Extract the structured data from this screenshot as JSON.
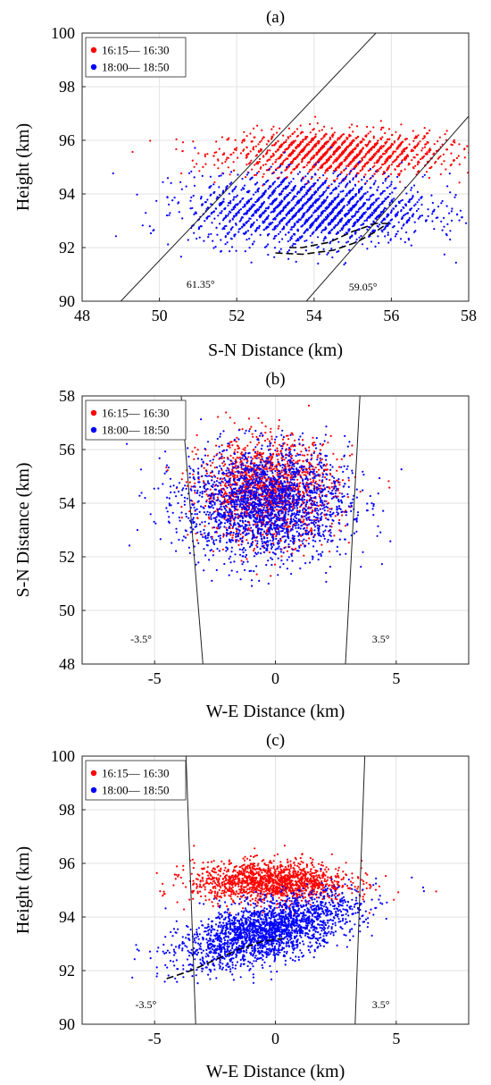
{
  "figure": {
    "panel_labels": [
      "(a)",
      "(b)",
      "(c)"
    ]
  },
  "chart_data": [
    {
      "type": "scatter",
      "panel_label": "(a)",
      "xlabel": "S-N Distance (km)",
      "ylabel": "Height (km)",
      "xlim": [
        48,
        58
      ],
      "ylim": [
        90,
        100
      ],
      "xticks": [
        48,
        50,
        52,
        54,
        56,
        58
      ],
      "yticks": [
        90,
        92,
        94,
        96,
        98,
        100
      ],
      "grid": true,
      "legend": "top-left",
      "series": [
        {
          "name": "16:15— 16:30",
          "color": "#ff0000",
          "cloud": {
            "cx": 54.6,
            "cy": 95.5,
            "sx": 1.4,
            "sy": 0.42,
            "n": 1500,
            "stripes": true
          }
        },
        {
          "name": "18:00— 18:50",
          "color": "#0000ff",
          "cloud": {
            "cx": 53.9,
            "cy": 93.4,
            "sx": 1.5,
            "sy": 0.65,
            "n": 2000,
            "stripes": true
          }
        }
      ],
      "lines": [
        {
          "points": [
            [
              49.0,
              90.0
            ],
            [
              55.6,
              100.0
            ]
          ],
          "label": "61.35°",
          "label_at": [
            50.7,
            90.5
          ]
        },
        {
          "points": [
            [
              53.8,
              90.0
            ],
            [
              58.0,
              96.9
            ]
          ],
          "label": "59.05°",
          "label_at": [
            54.9,
            90.4
          ]
        }
      ],
      "dashed_curve": [
        [
          53.0,
          91.8
        ],
        [
          53.7,
          91.75
        ],
        [
          54.5,
          91.9
        ],
        [
          55.1,
          92.2
        ],
        [
          55.6,
          92.6
        ],
        [
          55.9,
          92.9
        ],
        [
          55.6,
          92.9
        ],
        [
          55.0,
          92.6
        ],
        [
          54.4,
          92.2
        ],
        [
          53.7,
          92.0
        ],
        [
          53.3,
          92.0
        ]
      ]
    },
    {
      "type": "scatter",
      "panel_label": "(b)",
      "xlabel": "W-E Distance (km)",
      "ylabel": "S-N Distance (km)",
      "xlim": [
        -8,
        8
      ],
      "ylim": [
        48,
        58
      ],
      "xticks": [
        -5,
        0,
        5
      ],
      "yticks": [
        48,
        50,
        52,
        54,
        56,
        58
      ],
      "grid": true,
      "legend": "top-left",
      "series": [
        {
          "name": "16:15— 16:30",
          "color": "#ff0000",
          "cloud": {
            "cx": -0.3,
            "cy": 54.5,
            "sx": 1.4,
            "sy": 0.95,
            "n": 1500
          }
        },
        {
          "name": "18:00— 18:50",
          "color": "#0000ff",
          "cloud": {
            "cx": -0.4,
            "cy": 54.0,
            "sx": 1.7,
            "sy": 1.05,
            "n": 2200
          }
        }
      ],
      "lines": [
        {
          "points": [
            [
              -3.9,
              58.0
            ],
            [
              -3.0,
              48.0
            ]
          ],
          "label": "-3.5°",
          "label_at": [
            -6.0,
            48.8
          ]
        },
        {
          "points": [
            [
              3.5,
              58.0
            ],
            [
              2.9,
              48.0
            ]
          ],
          "label": "3.5°",
          "label_at": [
            4.0,
            48.8
          ]
        }
      ]
    },
    {
      "type": "scatter",
      "panel_label": "(c)",
      "xlabel": "W-E Distance (km)",
      "ylabel": "Height (km)",
      "xlim": [
        -8,
        8
      ],
      "ylim": [
        90,
        100
      ],
      "xticks": [
        -5,
        0,
        5
      ],
      "yticks": [
        90,
        92,
        94,
        96,
        98,
        100
      ],
      "grid": true,
      "legend": "top-left",
      "series": [
        {
          "name": "16:15— 16:30",
          "color": "#ff0000",
          "cloud": {
            "cx": -0.2,
            "cy": 95.3,
            "sx": 1.6,
            "sy": 0.38,
            "n": 1500
          }
        },
        {
          "name": "18:00— 18:50",
          "color": "#0000ff",
          "cloud": {
            "cx": -0.3,
            "cy": 93.5,
            "sx": 1.8,
            "sy": 0.55,
            "n": 2200,
            "slope": 0.22
          }
        }
      ],
      "lines": [
        {
          "points": [
            [
              -3.7,
              100.0
            ],
            [
              -3.3,
              90.0
            ]
          ],
          "label": "-3.5°",
          "label_at": [
            -5.8,
            90.6
          ]
        },
        {
          "points": [
            [
              3.7,
              100.0
            ],
            [
              3.3,
              90.0
            ]
          ],
          "label": "3.5°",
          "label_at": [
            4.0,
            90.6
          ]
        }
      ],
      "dashed_curve": [
        [
          -4.5,
          91.7
        ],
        [
          -3.5,
          92.0
        ],
        [
          -2.5,
          92.4
        ],
        [
          -1.5,
          92.8
        ],
        [
          -0.5,
          93.1
        ],
        [
          0.3,
          93.2
        ]
      ]
    }
  ]
}
